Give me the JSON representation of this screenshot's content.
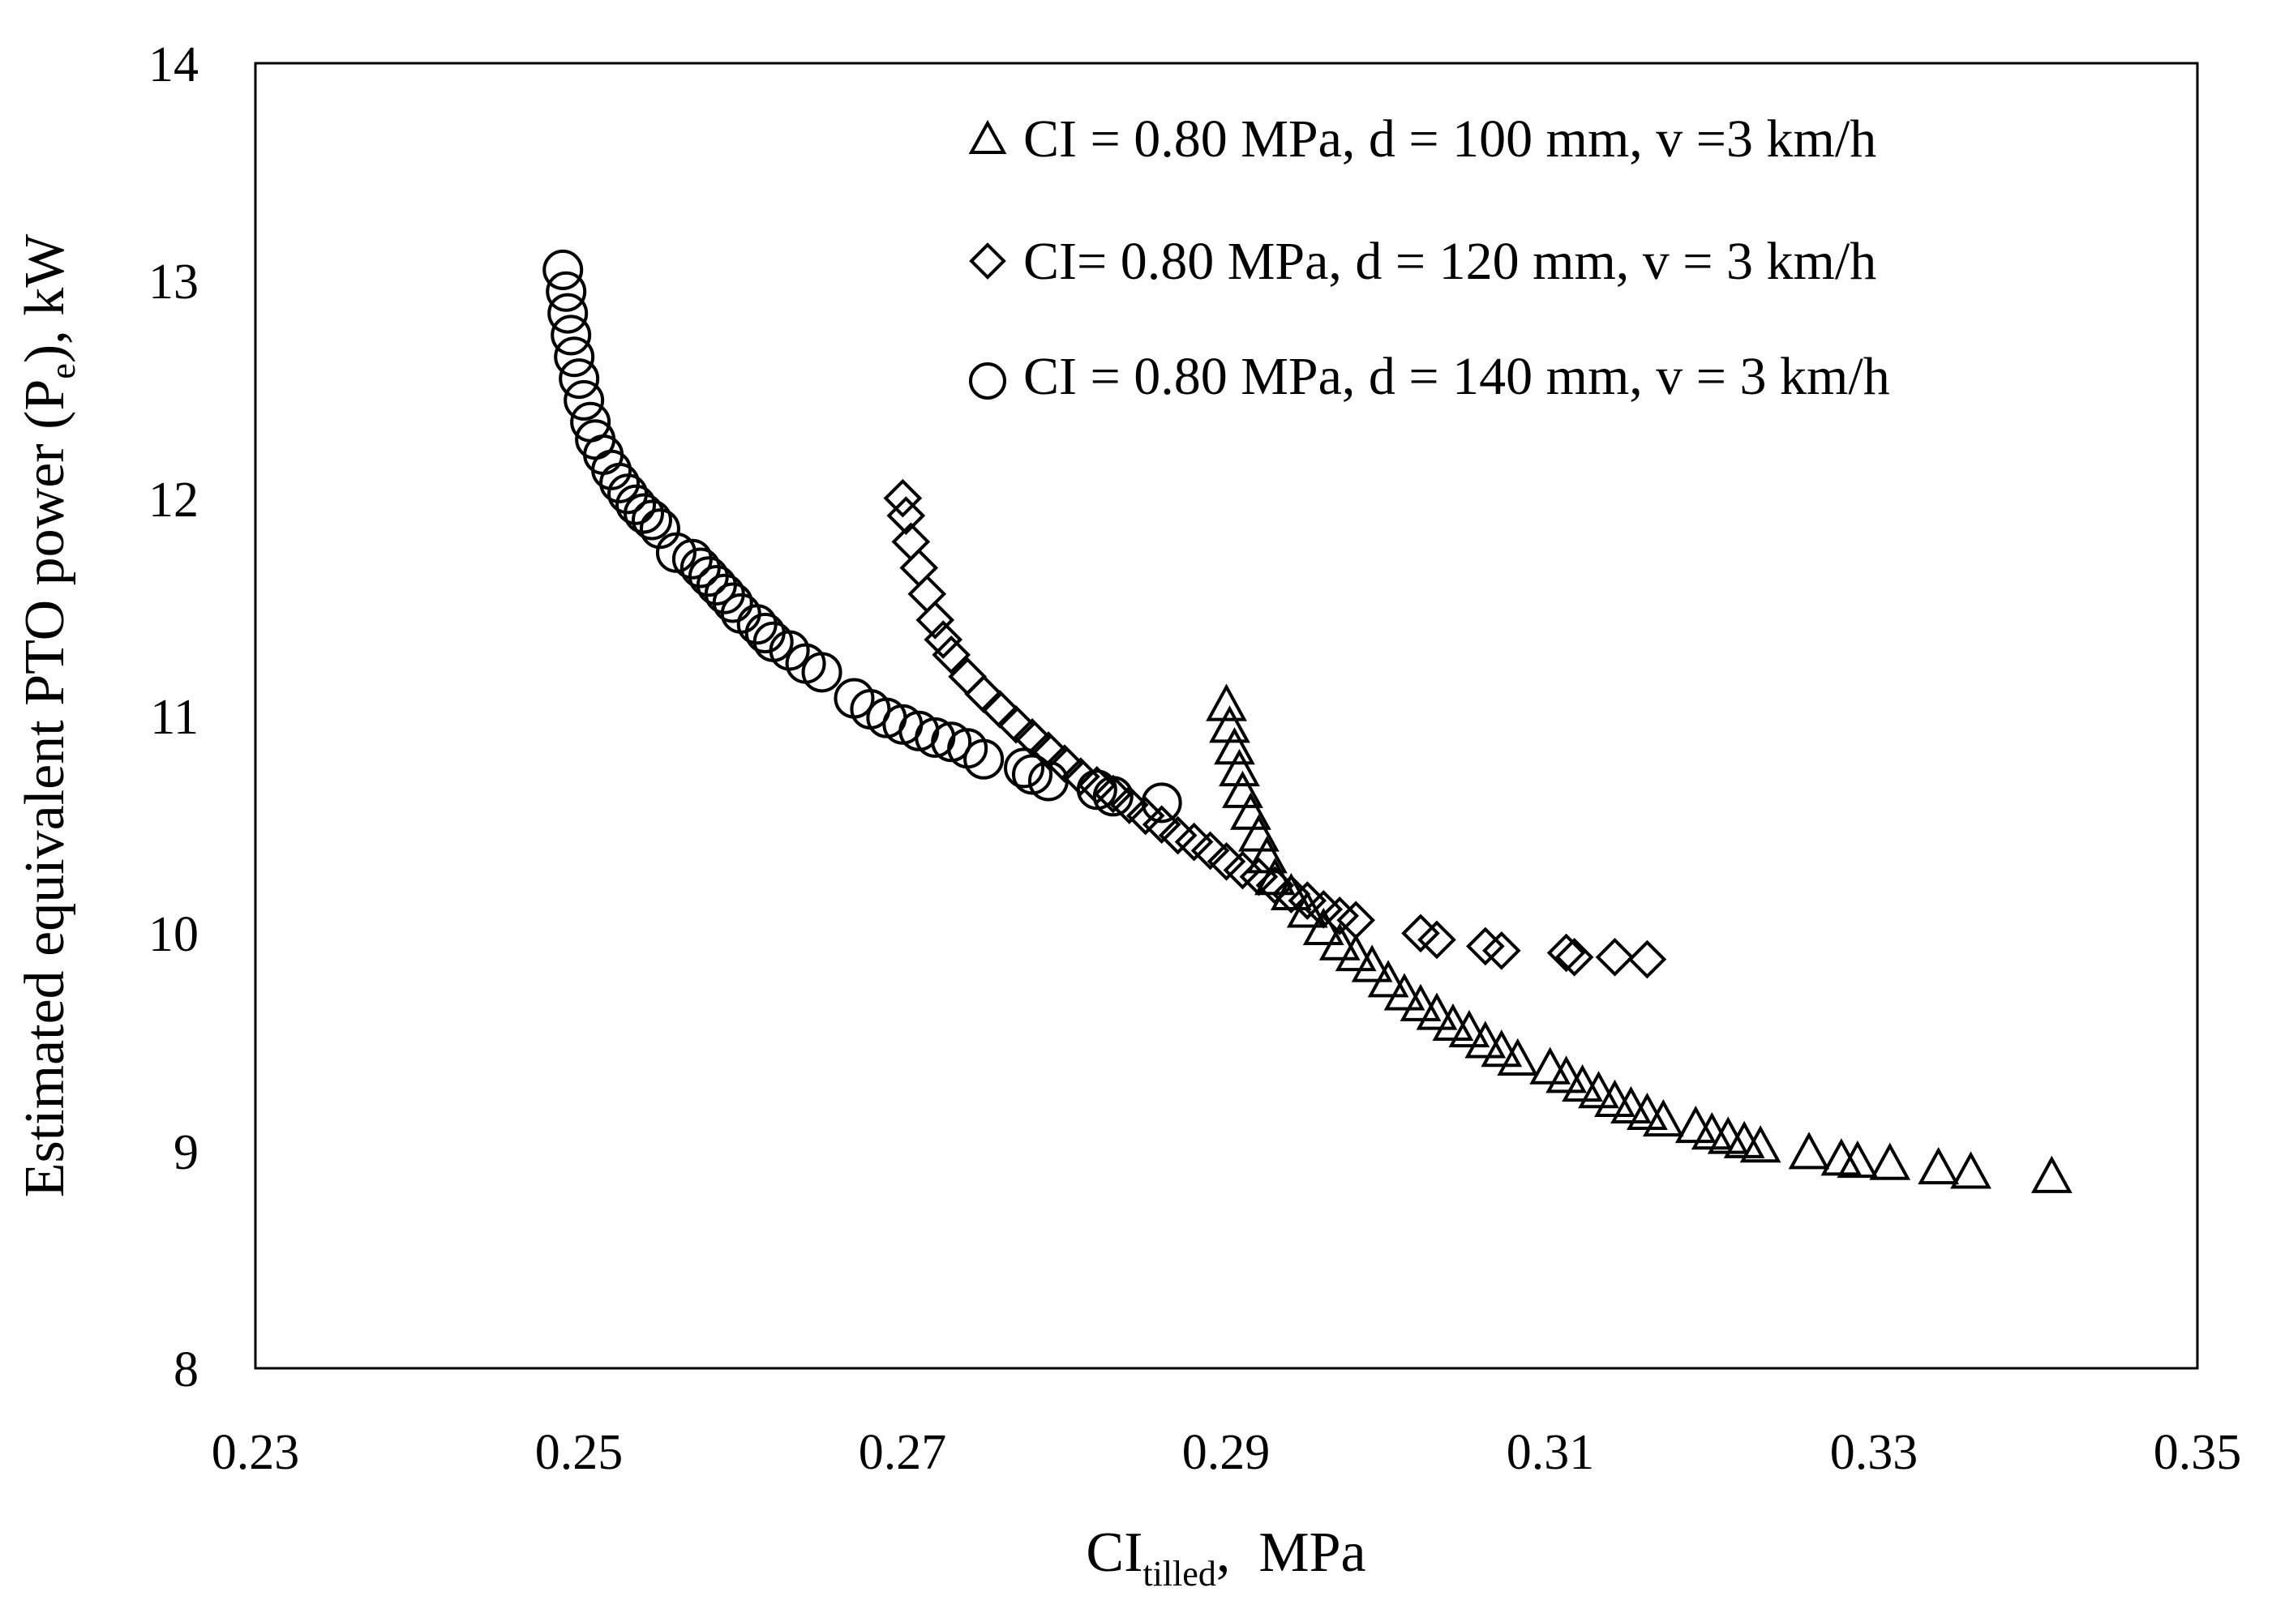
{
  "chart_data": {
    "type": "scatter",
    "title": "",
    "xlabel_main": "CI",
    "xlabel_sub": "tilled",
    "xlabel_unit": ",  MPa",
    "ylabel_pre": "Estimated equivalent PTO power (P",
    "ylabel_sub": "e",
    "ylabel_post": "), kW",
    "xlim": [
      0.23,
      0.35
    ],
    "ylim": [
      8,
      14
    ],
    "x_ticks": [
      "0.23",
      "0.25",
      "0.27",
      "0.29",
      "0.31",
      "0.33",
      "0.35"
    ],
    "y_ticks": [
      "8",
      "9",
      "10",
      "11",
      "12",
      "13",
      "14"
    ],
    "grid": false,
    "legend_position": "top-right",
    "series": [
      {
        "name": "CI = 0.80 MPa, d = 100 mm, v =3 km/h",
        "marker": "triangle",
        "x": [
          0.29,
          0.2902,
          0.2905,
          0.2908,
          0.291,
          0.2915,
          0.292,
          0.2925,
          0.293,
          0.294,
          0.295,
          0.296,
          0.297,
          0.298,
          0.299,
          0.3,
          0.301,
          0.302,
          0.303,
          0.304,
          0.305,
          0.306,
          0.307,
          0.308,
          0.31,
          0.311,
          0.312,
          0.313,
          0.314,
          0.315,
          0.316,
          0.317,
          0.319,
          0.32,
          0.321,
          0.322,
          0.323,
          0.326,
          0.328,
          0.329,
          0.331,
          0.334,
          0.336,
          0.341
        ],
        "y": [
          11.05,
          10.95,
          10.85,
          10.75,
          10.65,
          10.55,
          10.45,
          10.35,
          10.25,
          10.18,
          10.1,
          10.02,
          9.95,
          9.9,
          9.85,
          9.78,
          9.72,
          9.67,
          9.63,
          9.58,
          9.55,
          9.5,
          9.46,
          9.42,
          9.38,
          9.34,
          9.3,
          9.27,
          9.23,
          9.2,
          9.17,
          9.14,
          9.11,
          9.08,
          9.06,
          9.04,
          9.02,
          8.99,
          8.96,
          8.95,
          8.94,
          8.92,
          8.9,
          8.88
        ]
      },
      {
        "name": "CI= 0.80 MPa, d = 120 mm, v = 3 km/h",
        "marker": "diamond",
        "x": [
          0.27,
          0.2702,
          0.2705,
          0.271,
          0.2715,
          0.272,
          0.2725,
          0.273,
          0.274,
          0.275,
          0.276,
          0.277,
          0.278,
          0.279,
          0.28,
          0.281,
          0.282,
          0.283,
          0.284,
          0.285,
          0.286,
          0.287,
          0.288,
          0.289,
          0.29,
          0.291,
          0.292,
          0.293,
          0.294,
          0.295,
          0.296,
          0.297,
          0.298,
          0.302,
          0.303,
          0.306,
          0.307,
          0.311,
          0.3115,
          0.314,
          0.316
        ],
        "y": [
          12.0,
          11.92,
          11.8,
          11.68,
          11.56,
          11.44,
          11.35,
          11.28,
          11.18,
          11.1,
          11.03,
          10.96,
          10.9,
          10.84,
          10.78,
          10.72,
          10.68,
          10.64,
          10.59,
          10.54,
          10.5,
          10.45,
          10.42,
          10.38,
          10.33,
          10.29,
          10.26,
          10.22,
          10.18,
          10.15,
          10.11,
          10.08,
          10.06,
          10.0,
          9.97,
          9.94,
          9.92,
          9.91,
          9.89,
          9.89,
          9.88
        ]
      },
      {
        "name": "CI = 0.80 MPa, d = 140 mm, v = 3 km/h",
        "marker": "circle",
        "x": [
          0.249,
          0.2492,
          0.2493,
          0.2495,
          0.2497,
          0.25,
          0.2503,
          0.2507,
          0.251,
          0.2515,
          0.252,
          0.2525,
          0.253,
          0.2535,
          0.254,
          0.2545,
          0.255,
          0.256,
          0.257,
          0.2575,
          0.258,
          0.2585,
          0.259,
          0.2595,
          0.26,
          0.261,
          0.2615,
          0.262,
          0.263,
          0.264,
          0.265,
          0.267,
          0.268,
          0.269,
          0.27,
          0.271,
          0.272,
          0.273,
          0.274,
          0.275,
          0.2775,
          0.278,
          0.279,
          0.282,
          0.283,
          0.286
        ],
        "y": [
          13.05,
          12.95,
          12.85,
          12.75,
          12.65,
          12.55,
          12.45,
          12.35,
          12.27,
          12.2,
          12.13,
          12.07,
          12.02,
          11.97,
          11.93,
          11.9,
          11.86,
          11.75,
          11.72,
          11.68,
          11.64,
          11.6,
          11.56,
          11.52,
          11.47,
          11.42,
          11.38,
          11.34,
          11.3,
          11.24,
          11.2,
          11.08,
          11.03,
          10.99,
          10.96,
          10.93,
          10.9,
          10.88,
          10.85,
          10.8,
          10.76,
          10.73,
          10.7,
          10.66,
          10.63,
          10.6
        ]
      }
    ]
  }
}
